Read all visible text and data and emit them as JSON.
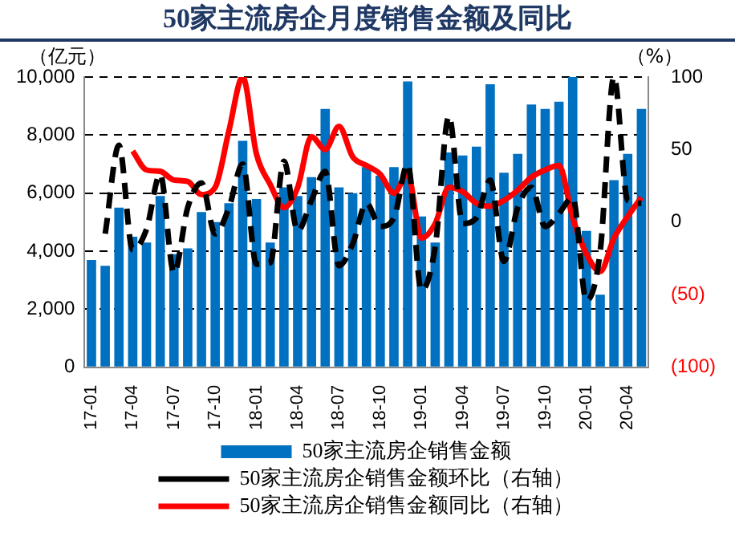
{
  "chart_data": {
    "type": "bar",
    "title": "50家主流房企月度销售金额及同比",
    "ylabel": "（亿元）",
    "y2label": "（%）",
    "categories": [
      "17-01",
      null,
      null,
      "17-04",
      null,
      null,
      "17-07",
      null,
      null,
      "17-10",
      null,
      null,
      "18-01",
      null,
      null,
      "18-04",
      null,
      null,
      "18-07",
      null,
      null,
      "18-10",
      null,
      null,
      "19-01",
      null,
      null,
      "19-04",
      null,
      null,
      "19-07",
      null,
      null,
      "19-10",
      null,
      null,
      "20-01",
      null,
      null,
      "20-04",
      null
    ],
    "series": [
      {
        "name": "50家主流房企销售金额",
        "color": "#0070c0",
        "values": [
          3700,
          3500,
          5500,
          4500,
          4300,
          5900,
          3900,
          4100,
          5350,
          5000,
          5650,
          7800,
          5800,
          4300,
          6200,
          5900,
          6550,
          8900,
          6200,
          6000,
          6900,
          6600,
          6900,
          9850,
          5200,
          4300,
          7400,
          7300,
          7600,
          9750,
          6700,
          7350,
          9050,
          8900,
          9150,
          10000,
          4700,
          2500,
          6450,
          7350,
          8900
        ]
      },
      {
        "name": "50家主流房企销售金额环比（右轴）",
        "type": "line",
        "axis": "y2",
        "color": "#000000",
        "line_style": "dashed",
        "values": [
          null,
          -8,
          53,
          -19,
          -5,
          33,
          -35,
          10,
          27,
          -8,
          10,
          40,
          -29,
          -28,
          42,
          -6,
          15,
          35,
          -30,
          -15,
          13,
          -3,
          3,
          40,
          -47,
          -17,
          73,
          -1,
          3,
          29,
          -27,
          10,
          24,
          -3,
          6,
          17,
          -54,
          -20,
          100,
          15,
          13
        ]
      },
      {
        "name": "50家主流房企销售金额同比（右轴）",
        "type": "line",
        "axis": "y2",
        "color": "#ff0000",
        "line_style": "solid",
        "values": [
          null,
          null,
          null,
          49,
          36,
          35,
          29,
          28,
          19,
          24,
          63,
          100,
          47,
          26,
          10,
          24,
          59,
          50,
          66,
          45,
          39,
          33,
          20,
          33,
          -11,
          -1,
          24,
          21,
          13,
          11,
          15,
          22,
          31,
          36,
          39,
          3,
          -22,
          -34,
          -11,
          4,
          17
        ]
      }
    ],
    "ylim": [
      0,
      10000
    ],
    "yticks": [
      0,
      {
        "value": 2000,
        "label": "2,000"
      },
      {
        "value": 4000,
        "label": "4,000"
      },
      {
        "value": 6000,
        "label": "6,000"
      },
      {
        "value": 8000,
        "label": "8,000"
      },
      {
        "value": 10000,
        "label": "10,000"
      }
    ],
    "y2lim": [
      -100,
      100
    ],
    "y2ticks": [
      {
        "value": -100,
        "label": "(100)"
      },
      {
        "value": -50,
        "label": "(50)"
      },
      0,
      50,
      100
    ],
    "grid": "y",
    "legend": "bottom",
    "marker": "none"
  }
}
